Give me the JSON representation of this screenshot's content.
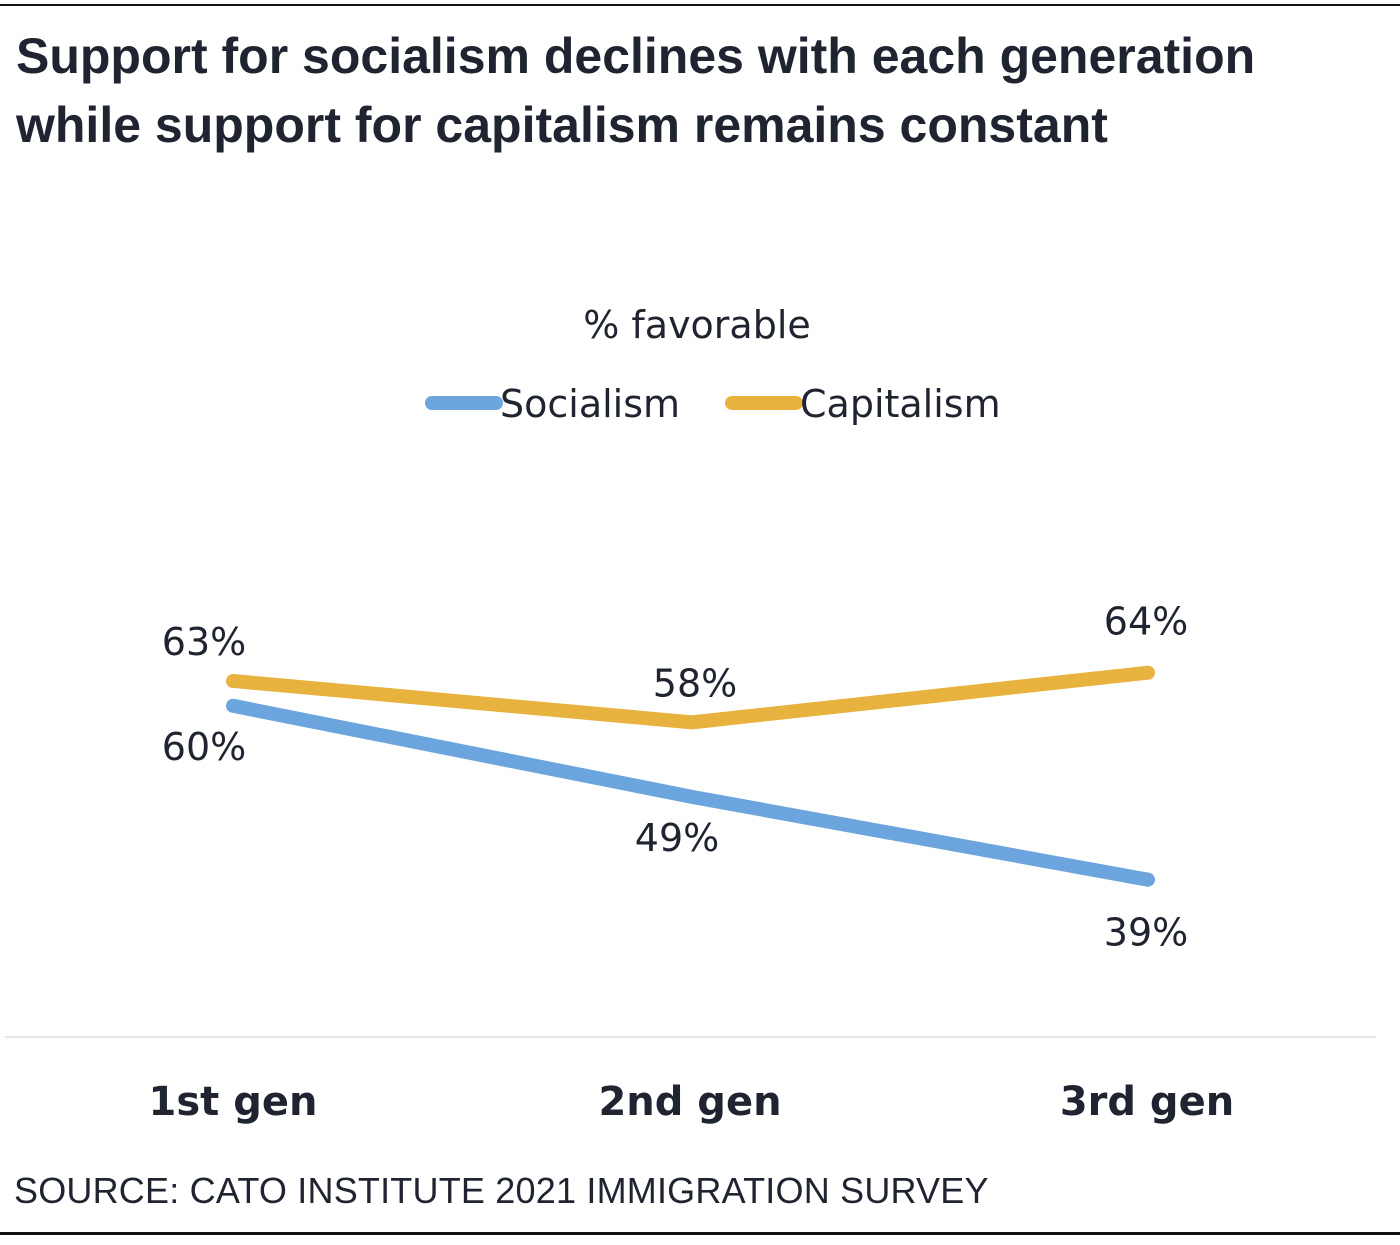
{
  "title": "Support for socialism declines with each generation  while support for capitalism remains constant",
  "source": "SOURCE: CATO INSTITUTE 2021 IMMIGRATION SURVEY",
  "chart_data": {
    "type": "line",
    "title": "% favorable",
    "xlabel": "",
    "ylabel": "",
    "categories": [
      "1st gen",
      "2nd gen",
      "3rd gen"
    ],
    "ylim": [
      20,
      90
    ],
    "grid": false,
    "legend": "top-center",
    "series": [
      {
        "name": "Socialism",
        "color": "#6CA5DD",
        "values": [
          60,
          49,
          39
        ],
        "labels": [
          "60%",
          "49%",
          "39%"
        ],
        "label_position": "below"
      },
      {
        "name": "Capitalism",
        "color": "#E8B23F",
        "values": [
          63,
          58,
          64
        ],
        "labels": [
          "63%",
          "58%",
          "64%"
        ],
        "label_position": "above"
      }
    ]
  }
}
